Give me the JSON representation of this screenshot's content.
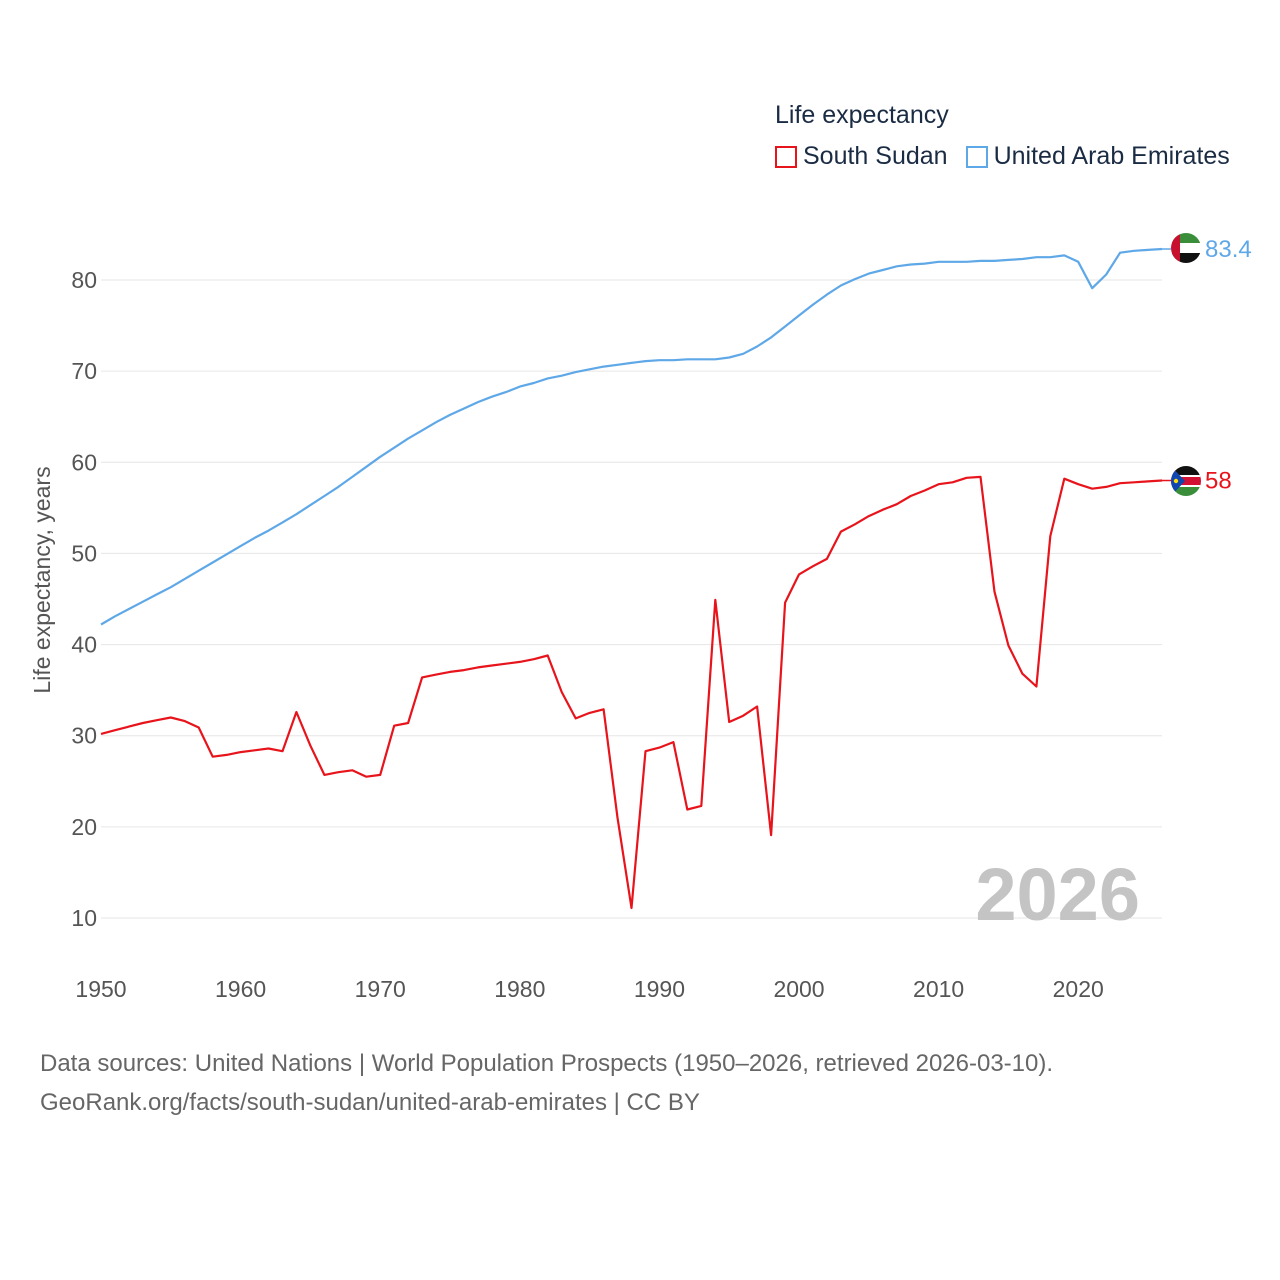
{
  "chart_data": {
    "type": "line",
    "legend_title": "Life expectancy",
    "ylabel": "Life expectancy, years",
    "xlabel": "",
    "xlim": [
      1950,
      2026
    ],
    "ylim": [
      5,
      90
    ],
    "x_ticks": [
      1950,
      1960,
      1970,
      1980,
      1990,
      2000,
      2010,
      2020
    ],
    "y_ticks": [
      10,
      20,
      30,
      40,
      50,
      60,
      70,
      80
    ],
    "current_year": "2026",
    "grid": true,
    "legend_position": "top-right",
    "series": [
      {
        "name": "South Sudan",
        "color": "#e8141c",
        "end_label": "58",
        "flag_icon": "south-sudan-flag-icon",
        "x": [
          1950,
          1951,
          1952,
          1953,
          1954,
          1955,
          1956,
          1957,
          1958,
          1959,
          1960,
          1961,
          1962,
          1963,
          1964,
          1965,
          1966,
          1967,
          1968,
          1969,
          1970,
          1971,
          1972,
          1973,
          1974,
          1975,
          1976,
          1977,
          1978,
          1979,
          1980,
          1981,
          1982,
          1983,
          1984,
          1985,
          1986,
          1987,
          1988,
          1989,
          1990,
          1991,
          1992,
          1993,
          1994,
          1995,
          1996,
          1997,
          1998,
          1999,
          2000,
          2001,
          2002,
          2003,
          2004,
          2005,
          2006,
          2007,
          2008,
          2009,
          2010,
          2011,
          2012,
          2013,
          2014,
          2015,
          2016,
          2017,
          2018,
          2019,
          2020,
          2021,
          2022,
          2023,
          2024,
          2025,
          2026
        ],
        "values": [
          30.2,
          30.6,
          31.0,
          31.4,
          31.7,
          32.0,
          31.6,
          30.9,
          27.7,
          27.9,
          28.2,
          28.4,
          28.6,
          28.3,
          32.6,
          28.9,
          25.7,
          26.0,
          26.2,
          25.5,
          25.7,
          31.1,
          31.4,
          36.4,
          36.7,
          37.0,
          37.2,
          37.5,
          37.7,
          37.9,
          38.1,
          38.4,
          38.8,
          34.8,
          31.9,
          32.5,
          32.9,
          21.0,
          11.1,
          28.3,
          28.7,
          29.3,
          21.9,
          22.3,
          44.9,
          31.5,
          32.2,
          33.2,
          19.1,
          44.6,
          47.7,
          48.6,
          49.4,
          52.4,
          53.2,
          54.1,
          54.8,
          55.4,
          56.3,
          56.9,
          57.6,
          57.8,
          58.3,
          58.4,
          45.8,
          39.9,
          36.8,
          35.4,
          51.9,
          58.2,
          57.6,
          57.1,
          57.3,
          57.7,
          57.8,
          57.9,
          58.0
        ]
      },
      {
        "name": "United Arab Emirates",
        "color": "#5fa8e8",
        "end_label": "83.4",
        "flag_icon": "uae-flag-icon",
        "x": [
          1950,
          1951,
          1952,
          1953,
          1954,
          1955,
          1956,
          1957,
          1958,
          1959,
          1960,
          1961,
          1962,
          1963,
          1964,
          1965,
          1966,
          1967,
          1968,
          1969,
          1970,
          1971,
          1972,
          1973,
          1974,
          1975,
          1976,
          1977,
          1978,
          1979,
          1980,
          1981,
          1982,
          1983,
          1984,
          1985,
          1986,
          1987,
          1988,
          1989,
          1990,
          1991,
          1992,
          1993,
          1994,
          1995,
          1996,
          1997,
          1998,
          1999,
          2000,
          2001,
          2002,
          2003,
          2004,
          2005,
          2006,
          2007,
          2008,
          2009,
          2010,
          2011,
          2012,
          2013,
          2014,
          2015,
          2016,
          2017,
          2018,
          2019,
          2020,
          2021,
          2022,
          2023,
          2024,
          2025,
          2026
        ],
        "values": [
          42.2,
          43.1,
          43.9,
          44.7,
          45.5,
          46.3,
          47.2,
          48.1,
          49.0,
          49.9,
          50.8,
          51.7,
          52.5,
          53.4,
          54.3,
          55.3,
          56.3,
          57.3,
          58.4,
          59.5,
          60.6,
          61.6,
          62.6,
          63.5,
          64.4,
          65.2,
          65.9,
          66.6,
          67.2,
          67.7,
          68.3,
          68.7,
          69.2,
          69.5,
          69.9,
          70.2,
          70.5,
          70.7,
          70.9,
          71.1,
          71.2,
          71.2,
          71.3,
          71.3,
          71.3,
          71.5,
          71.9,
          72.7,
          73.7,
          74.9,
          76.1,
          77.3,
          78.4,
          79.4,
          80.1,
          80.7,
          81.1,
          81.5,
          81.7,
          81.8,
          82.0,
          82.0,
          82.0,
          82.1,
          82.1,
          82.2,
          82.3,
          82.5,
          82.5,
          82.7,
          82.0,
          79.1,
          80.6,
          83.0,
          83.2,
          83.3,
          83.4
        ]
      }
    ]
  },
  "footer": {
    "source_line": "Data sources: United Nations | World Population Prospects (1950–2026, retrieved 2026-03-10).",
    "url_line": "GeoRank.org/facts/south-sudan/united-arab-emirates | CC BY"
  }
}
